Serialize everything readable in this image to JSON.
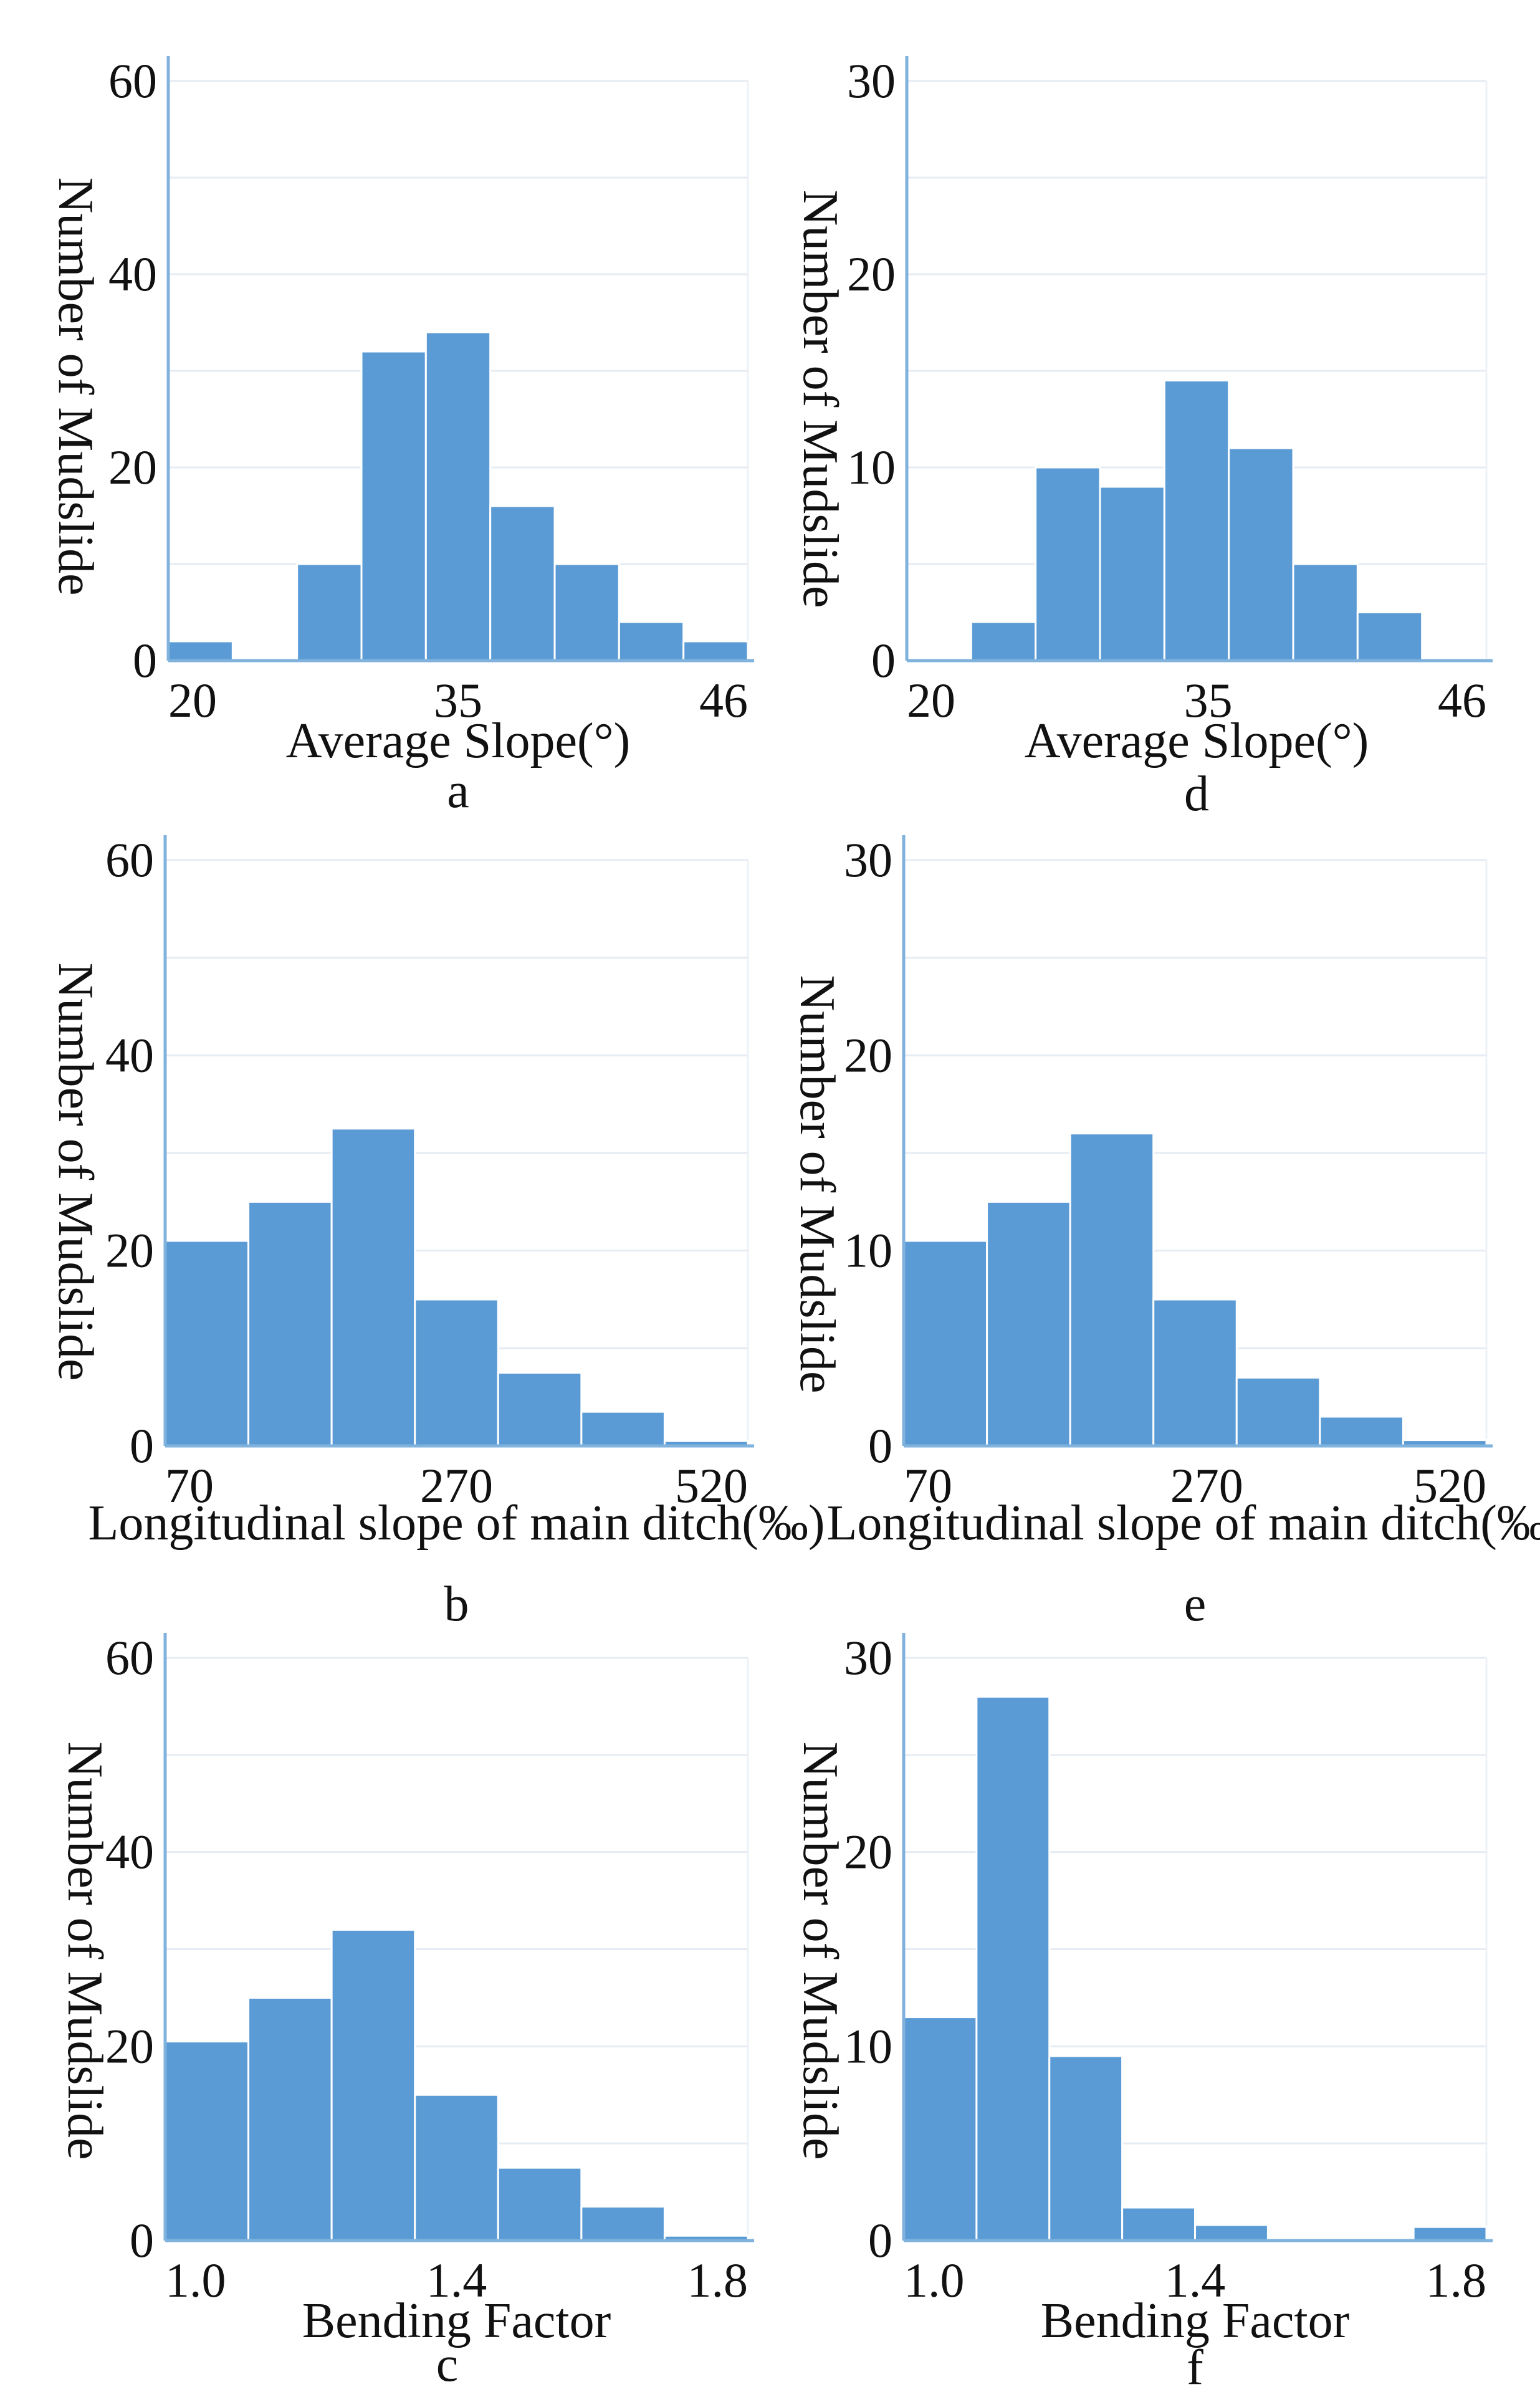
{
  "chart_data": [
    {
      "id": "a",
      "type": "bar",
      "panel_label": "a",
      "xlabel": "Average Slope(°)",
      "ylabel": "Number of Mudslide",
      "ylim": [
        0,
        60
      ],
      "yticks": [
        "0",
        "20",
        "40",
        "60"
      ],
      "xticks": [
        {
          "label": "20",
          "pos": 0
        },
        {
          "label": "35",
          "pos": 0.5
        },
        {
          "label": "46",
          "pos": 1
        }
      ],
      "values": [
        2,
        0,
        10,
        32,
        34,
        16,
        10,
        4,
        2
      ],
      "color": "#5b9bd5"
    },
    {
      "id": "d",
      "type": "bar",
      "panel_label": "d",
      "xlabel": "Average Slope(°)",
      "ylabel": "Number of Mudslide",
      "ylim": [
        0,
        30
      ],
      "yticks": [
        "0",
        "10",
        "20",
        "30"
      ],
      "xticks": [
        {
          "label": "20",
          "pos": 0
        },
        {
          "label": "35",
          "pos": 0.52
        },
        {
          "label": "46",
          "pos": 1
        }
      ],
      "values": [
        0,
        2,
        10,
        9,
        14.5,
        11,
        5,
        2.5,
        0
      ],
      "color": "#5b9bd5"
    },
    {
      "id": "b",
      "type": "bar",
      "panel_label": "b",
      "xlabel": "Longitudinal slope of main ditch(‰)",
      "ylabel": "Number of Mudslide",
      "ylim": [
        0,
        60
      ],
      "yticks": [
        "0",
        "20",
        "40",
        "60"
      ],
      "xticks": [
        {
          "label": "70",
          "pos": 0
        },
        {
          "label": "270",
          "pos": 0.5
        },
        {
          "label": "520",
          "pos": 1
        }
      ],
      "values": [
        21,
        25,
        32.5,
        15,
        7.5,
        3.5,
        0.5
      ],
      "color": "#5b9bd5"
    },
    {
      "id": "e",
      "type": "bar",
      "panel_label": "e",
      "xlabel": "Longitudinal slope of main ditch(‰)",
      "ylabel": "Number of Mudslide",
      "ylim": [
        0,
        30
      ],
      "yticks": [
        "0",
        "10",
        "20",
        "30"
      ],
      "xticks": [
        {
          "label": "70",
          "pos": 0
        },
        {
          "label": "270",
          "pos": 0.52
        },
        {
          "label": "520",
          "pos": 1
        }
      ],
      "values": [
        10.5,
        12.5,
        16,
        7.5,
        3.5,
        1.5,
        0.3
      ],
      "color": "#5b9bd5"
    },
    {
      "id": "c",
      "type": "bar",
      "panel_label": "c",
      "xlabel": "Bending Factor",
      "ylabel": "Number of Mudslide",
      "ylim": [
        0,
        60
      ],
      "yticks": [
        "0",
        "20",
        "40",
        "60"
      ],
      "xticks": [
        {
          "label": "1.0",
          "pos": 0
        },
        {
          "label": "1.4",
          "pos": 0.5
        },
        {
          "label": "1.8",
          "pos": 1
        }
      ],
      "values": [
        20.5,
        25,
        32,
        15,
        7.5,
        3.5,
        0.5
      ],
      "color": "#5b9bd5"
    },
    {
      "id": "f",
      "type": "bar",
      "panel_label": "f",
      "xlabel": "Bending Factor",
      "ylabel": "Number of Mudslide",
      "ylim": [
        0,
        30
      ],
      "yticks": [
        "0",
        "10",
        "20",
        "30"
      ],
      "xticks": [
        {
          "label": "1.0",
          "pos": 0
        },
        {
          "label": "1.4",
          "pos": 0.5
        },
        {
          "label": "1.8",
          "pos": 1
        }
      ],
      "values": [
        11.5,
        28,
        9.5,
        1.7,
        0.8,
        0,
        0,
        0.7
      ],
      "color": "#5b9bd5"
    }
  ]
}
